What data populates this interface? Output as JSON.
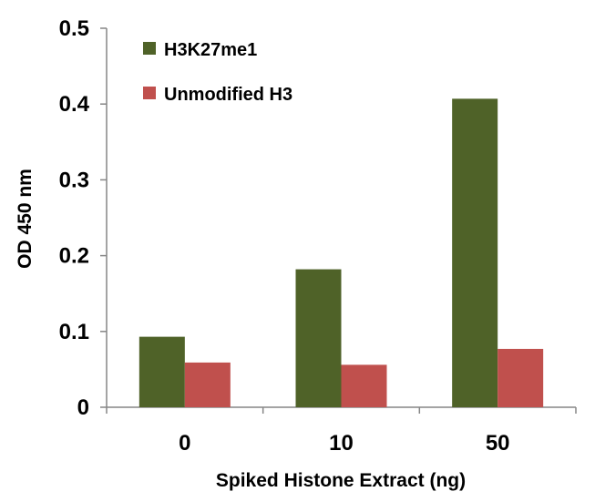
{
  "chart_data": {
    "type": "bar",
    "categories": [
      "0",
      "10",
      "50"
    ],
    "series": [
      {
        "name": "H3K27me1",
        "values": [
          0.093,
          0.182,
          0.407
        ],
        "color": "#4f6228"
      },
      {
        "name": "Unmodified H3",
        "values": [
          0.059,
          0.056,
          0.077
        ],
        "color": "#c0504d"
      }
    ],
    "title": "",
    "xlabel": "Spiked Histone Extract (ng)",
    "ylabel": "OD 450 nm",
    "ylim": [
      0,
      0.5
    ],
    "yticks": [
      "0",
      "0.1",
      "0.2",
      "0.3",
      "0.4",
      "0.5"
    ],
    "grid": false,
    "legend_position": "top-left"
  }
}
